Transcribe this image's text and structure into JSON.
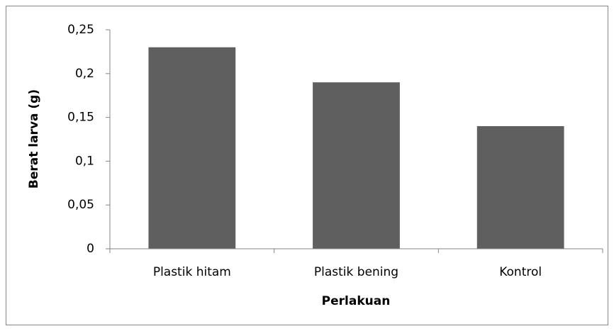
{
  "chart_data": {
    "type": "bar",
    "categories": [
      "Plastik hitam",
      "Plastik bening",
      "Kontrol"
    ],
    "values": [
      0.23,
      0.19,
      0.14
    ],
    "color": "#5f5f5f",
    "xlabel": "Perlakuan",
    "ylabel": "Berat larva (g)",
    "ylim": [
      0,
      0.25
    ],
    "yticks": [
      0,
      {
        "value": 0.05,
        "label": "0,05"
      },
      {
        "value": 0.1,
        "label": "0,1"
      },
      {
        "value": 0.15,
        "label": "0,15"
      },
      {
        "value": 0.2,
        "label": "0,2"
      },
      {
        "value": 0.25,
        "label": "0,25"
      }
    ],
    "grid": false
  }
}
